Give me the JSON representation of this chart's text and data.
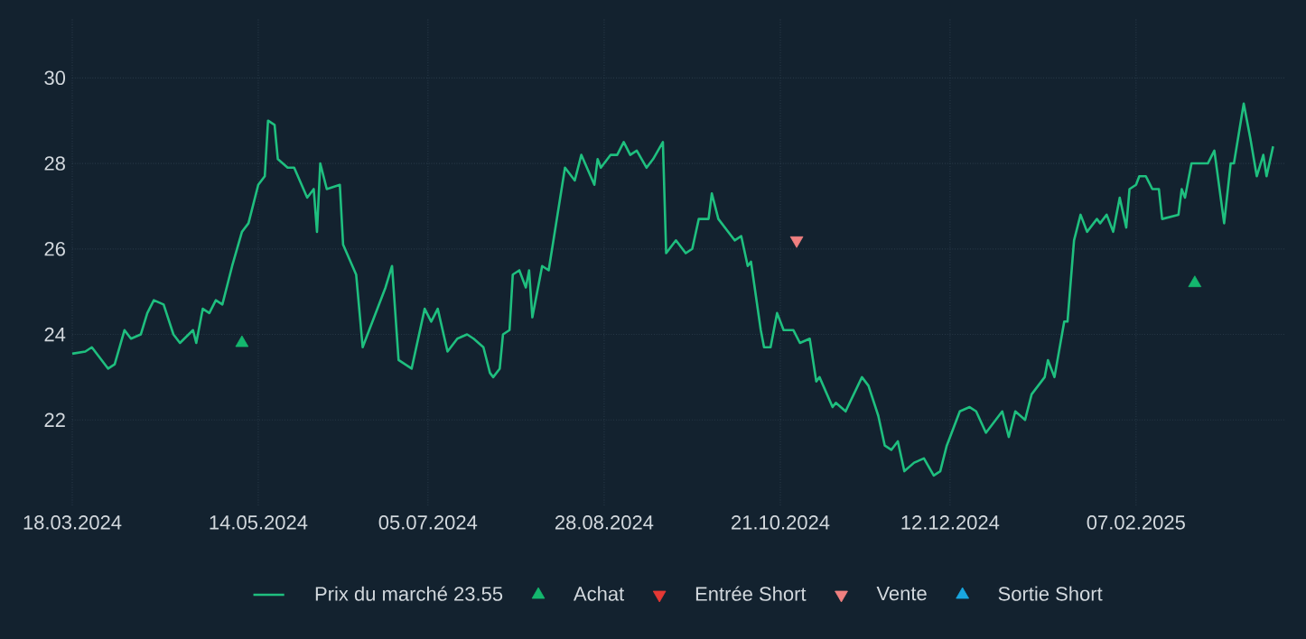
{
  "chart_data": {
    "type": "line",
    "xlim": [
      "2024-03-18",
      "2025-03-25"
    ],
    "ylim": [
      20,
      31.4
    ],
    "xticks": [
      {
        "value": "2024-03-18",
        "label": "18.03.2024"
      },
      {
        "value": "2024-05-14",
        "label": "14.05.2024"
      },
      {
        "value": "2024-07-05",
        "label": "05.07.2024"
      },
      {
        "value": "2024-08-28",
        "label": "28.08.2024"
      },
      {
        "value": "2024-10-21",
        "label": "21.10.2024"
      },
      {
        "value": "2024-12-12",
        "label": "12.12.2024"
      },
      {
        "value": "2025-02-07",
        "label": "07.02.2025"
      }
    ],
    "yticks": [
      22,
      24,
      26,
      28,
      30
    ],
    "grid": true,
    "legend": "bottom",
    "series": [
      {
        "name": "Prix du marché 23.55",
        "color": "#1fbf7f",
        "marker": "none",
        "line_style": "solid",
        "x": [
          "2024-03-18",
          "2024-03-22",
          "2024-03-24",
          "2024-03-26",
          "2024-03-29",
          "2024-03-31",
          "2024-04-03",
          "2024-04-05",
          "2024-04-08",
          "2024-04-10",
          "2024-04-12",
          "2024-04-15",
          "2024-04-18",
          "2024-04-20",
          "2024-04-24",
          "2024-04-25",
          "2024-04-27",
          "2024-04-29",
          "2024-05-01",
          "2024-05-03",
          "2024-05-05",
          "2024-05-06",
          "2024-05-09",
          "2024-05-11",
          "2024-05-14",
          "2024-05-16",
          "2024-05-17",
          "2024-05-19",
          "2024-05-20",
          "2024-05-23",
          "2024-05-25",
          "2024-05-29",
          "2024-05-31",
          "2024-06-01",
          "2024-06-02",
          "2024-06-04",
          "2024-06-08",
          "2024-06-09",
          "2024-06-13",
          "2024-06-15",
          "2024-06-17",
          "2024-06-22",
          "2024-06-24",
          "2024-06-26",
          "2024-06-30",
          "2024-07-04",
          "2024-07-06",
          "2024-07-08",
          "2024-07-11",
          "2024-07-14",
          "2024-07-17",
          "2024-07-19",
          "2024-07-22",
          "2024-07-24",
          "2024-07-25",
          "2024-07-27",
          "2024-07-28",
          "2024-07-30",
          "2024-07-31",
          "2024-08-02",
          "2024-08-04",
          "2024-08-05",
          "2024-08-06",
          "2024-08-09",
          "2024-08-11",
          "2024-08-16",
          "2024-08-19",
          "2024-08-21",
          "2024-08-25",
          "2024-08-26",
          "2024-08-27",
          "2024-08-30",
          "2024-09-01",
          "2024-09-03",
          "2024-09-05",
          "2024-09-07",
          "2024-09-10",
          "2024-09-12",
          "2024-09-15",
          "2024-09-16",
          "2024-09-19",
          "2024-09-22",
          "2024-09-24",
          "2024-09-26",
          "2024-09-29",
          "2024-09-30",
          "2024-10-02",
          "2024-10-07",
          "2024-10-09",
          "2024-10-11",
          "2024-10-12",
          "2024-10-15",
          "2024-10-16",
          "2024-10-18",
          "2024-10-20",
          "2024-10-22",
          "2024-10-25",
          "2024-10-27",
          "2024-10-30",
          "2024-11-01",
          "2024-11-02",
          "2024-11-06",
          "2024-11-07",
          "2024-11-10",
          "2024-11-15",
          "2024-11-17",
          "2024-11-20",
          "2024-11-22",
          "2024-11-24",
          "2024-11-26",
          "2024-11-28",
          "2024-12-01",
          "2024-12-04",
          "2024-12-07",
          "2024-12-09",
          "2024-12-11",
          "2024-12-15",
          "2024-12-18",
          "2024-12-20",
          "2024-12-23",
          "2024-12-26",
          "2024-12-28",
          "2024-12-30",
          "2025-01-01",
          "2025-01-04",
          "2025-01-06",
          "2025-01-10",
          "2025-01-11",
          "2025-01-13",
          "2025-01-16",
          "2025-01-17",
          "2025-01-19",
          "2025-01-21",
          "2025-01-23",
          "2025-01-26",
          "2025-01-27",
          "2025-01-29",
          "2025-01-31",
          "2025-02-02",
          "2025-02-04",
          "2025-02-05",
          "2025-02-07",
          "2025-02-08",
          "2025-02-10",
          "2025-02-12",
          "2025-02-14",
          "2025-02-15",
          "2025-02-20",
          "2025-02-21",
          "2025-02-22",
          "2025-02-24",
          "2025-03-01",
          "2025-03-03",
          "2025-03-06",
          "2025-03-08",
          "2025-03-09",
          "2025-03-12",
          "2025-03-14",
          "2025-03-16",
          "2025-03-18",
          "2025-03-19",
          "2025-03-21"
        ],
        "values": [
          23.55,
          23.6,
          23.7,
          23.5,
          23.2,
          23.3,
          24.1,
          23.9,
          24.0,
          24.5,
          24.8,
          24.7,
          24.0,
          23.8,
          24.1,
          23.8,
          24.6,
          24.5,
          24.8,
          24.7,
          25.3,
          25.6,
          26.4,
          26.6,
          27.5,
          27.7,
          29.0,
          28.9,
          28.1,
          27.9,
          27.9,
          27.2,
          27.4,
          26.4,
          28.0,
          27.4,
          27.5,
          26.1,
          25.4,
          23.7,
          24.1,
          25.1,
          25.6,
          23.4,
          23.2,
          24.6,
          24.3,
          24.6,
          23.6,
          23.9,
          24.0,
          23.9,
          23.7,
          23.1,
          23.0,
          23.2,
          24.0,
          24.1,
          25.4,
          25.5,
          25.1,
          25.5,
          24.4,
          25.6,
          25.5,
          27.9,
          27.6,
          28.2,
          27.5,
          28.1,
          27.9,
          28.2,
          28.2,
          28.5,
          28.2,
          28.3,
          27.9,
          28.1,
          28.5,
          25.9,
          26.2,
          25.9,
          26.0,
          26.7,
          26.7,
          27.3,
          26.7,
          26.2,
          26.3,
          25.6,
          25.7,
          24.1,
          23.7,
          23.7,
          24.5,
          24.1,
          24.1,
          23.8,
          23.9,
          22.9,
          23.0,
          22.3,
          22.4,
          22.2,
          23.0,
          22.8,
          22.1,
          21.4,
          21.3,
          21.5,
          20.8,
          21.0,
          21.1,
          20.7,
          20.8,
          21.4,
          22.2,
          22.3,
          22.2,
          21.7,
          22.0,
          22.2,
          21.6,
          22.2,
          22.0,
          22.6,
          23.0,
          23.4,
          23.0,
          24.3,
          24.3,
          26.2,
          26.8,
          26.4,
          26.7,
          26.6,
          26.8,
          26.4,
          27.2,
          26.5,
          27.4,
          27.5,
          27.7,
          27.7,
          27.4,
          27.4,
          26.7,
          26.8,
          27.4,
          27.2,
          28.0,
          28.0,
          28.3,
          26.6,
          28.0,
          28.0,
          29.4,
          28.6,
          27.7,
          28.2,
          27.7,
          28.4
        ]
      },
      {
        "name": "Achat",
        "type": "scatter",
        "color": "#14b86e",
        "marker": "triangle",
        "x": [
          "2024-05-09",
          "2025-02-25"
        ],
        "values": [
          23.8,
          25.2
        ]
      },
      {
        "name": "Entrée Short",
        "type": "scatter",
        "color": "#e53935",
        "marker": "triangle-down"
      },
      {
        "name": "Vente",
        "type": "scatter",
        "color": "#f08080",
        "marker": "triangle-down",
        "x": [
          "2024-10-26"
        ],
        "values": [
          26.2
        ]
      },
      {
        "name": "Sortie Short",
        "type": "scatter",
        "color": "#19a7e0",
        "marker": "triangle"
      }
    ]
  }
}
